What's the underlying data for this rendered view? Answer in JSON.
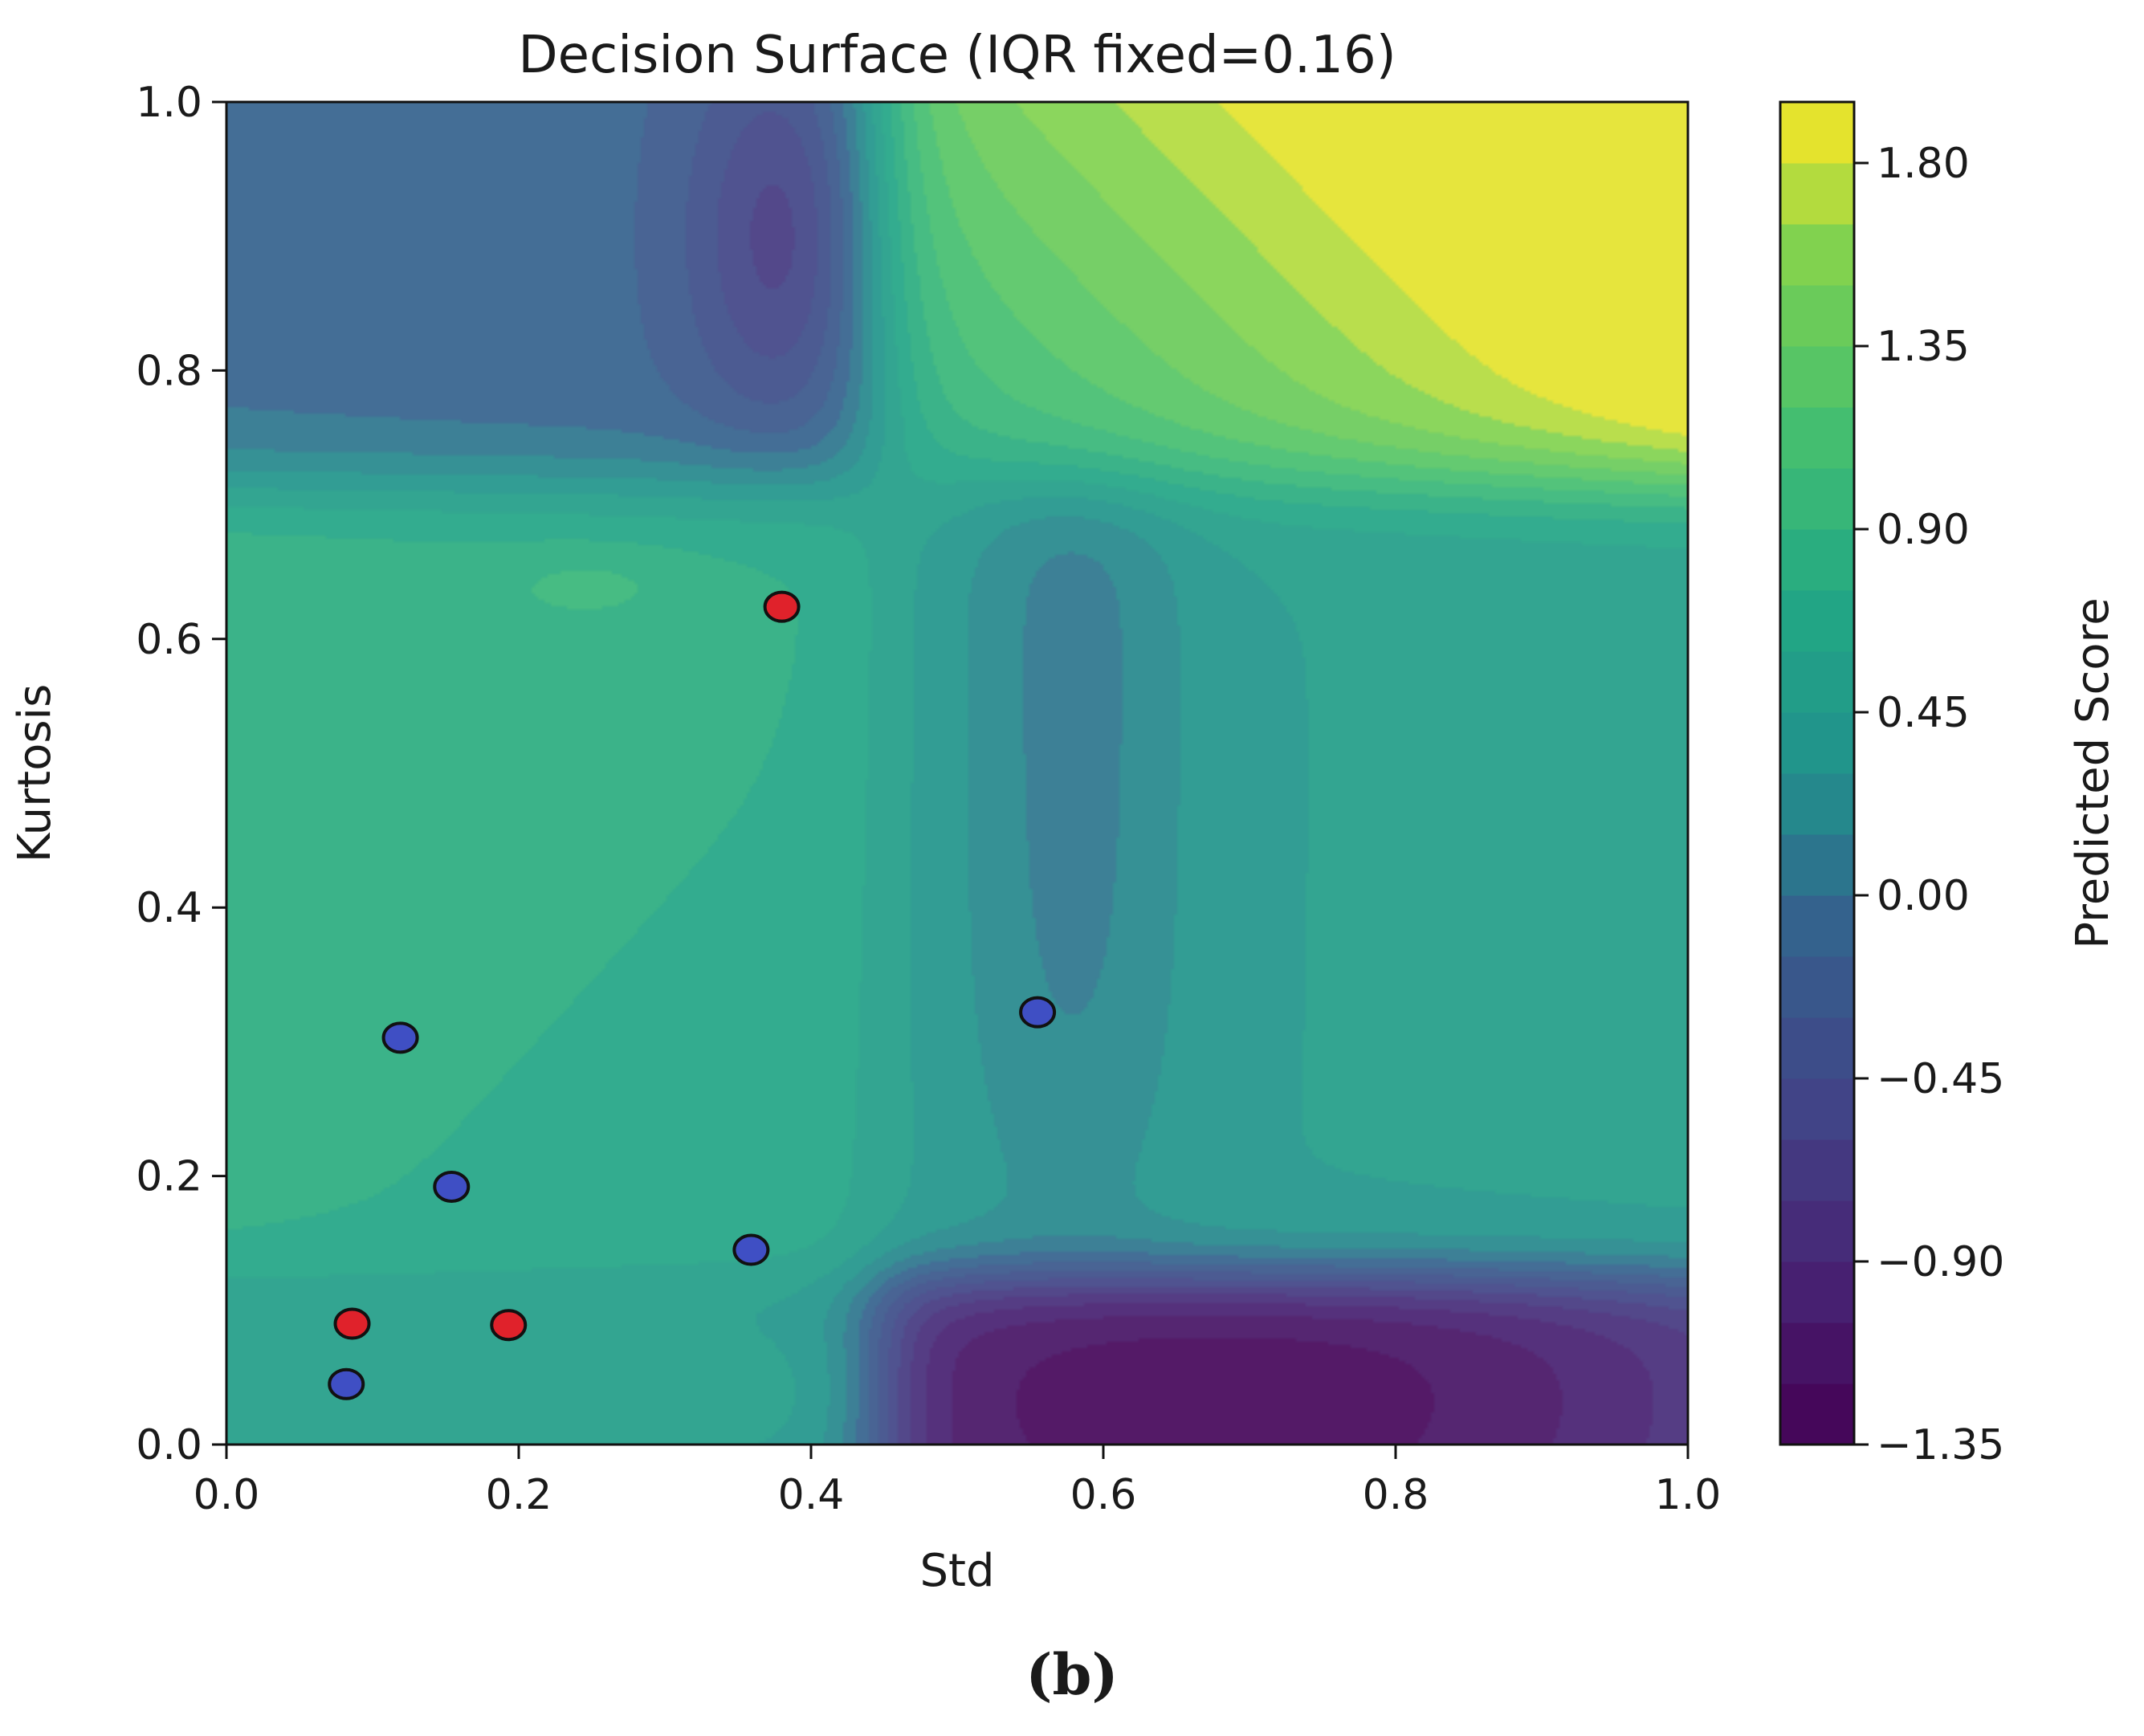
{
  "chart_data": {
    "type": "heatmap",
    "title": "Decision Surface (IQR fixed=0.16)",
    "xlabel": "Std",
    "ylabel": "Kurtosis",
    "xlim": [
      0.0,
      1.0
    ],
    "ylim": [
      0.0,
      1.0
    ],
    "x_ticks": [
      "0.0",
      "0.2",
      "0.4",
      "0.6",
      "0.8",
      "1.0"
    ],
    "y_ticks": [
      "0.0",
      "0.2",
      "0.4",
      "0.6",
      "0.8",
      "1.0"
    ],
    "colorbar": {
      "label": "Predicted Score",
      "range": [
        -1.35,
        1.95
      ],
      "ticks": [
        "−1.35",
        "−0.90",
        "−0.45",
        "0.00",
        "0.45",
        "0.90",
        "1.35",
        "1.80"
      ],
      "tick_values": [
        -1.35,
        -0.9,
        -0.45,
        0.0,
        0.45,
        0.9,
        1.35,
        1.8
      ],
      "colormap": "viridis",
      "levels": 22
    },
    "surface_regions": [
      {
        "region": "top-right (Std>0.47, Kurtosis>0.72)",
        "value_range": [
          0.9,
          1.95
        ]
      },
      {
        "region": "bottom-right (Std>0.5, Kurtosis<0.13)",
        "value_range": [
          -1.35,
          -0.75
        ]
      },
      {
        "region": "top-center (Std 0.3–0.45, Kurtosis>0.75)",
        "value_range": [
          -0.9,
          -0.3
        ]
      },
      {
        "region": "left band (Std<0.4, Kurtosis 0.25–0.7)",
        "value_range": [
          0.6,
          1.05
        ]
      }
    ],
    "series": [
      {
        "name": "",
        "color": "#e0222b",
        "points": [
          [
            0.38,
            0.624
          ],
          [
            0.086,
            0.09
          ],
          [
            0.193,
            0.089
          ]
        ]
      },
      {
        "name": "",
        "color": "#3f4fc4",
        "points": [
          [
            0.555,
            0.322
          ],
          [
            0.119,
            0.303
          ],
          [
            0.154,
            0.192
          ],
          [
            0.359,
            0.145
          ],
          [
            0.082,
            0.045
          ]
        ]
      }
    ]
  },
  "panel_label": "(b)"
}
